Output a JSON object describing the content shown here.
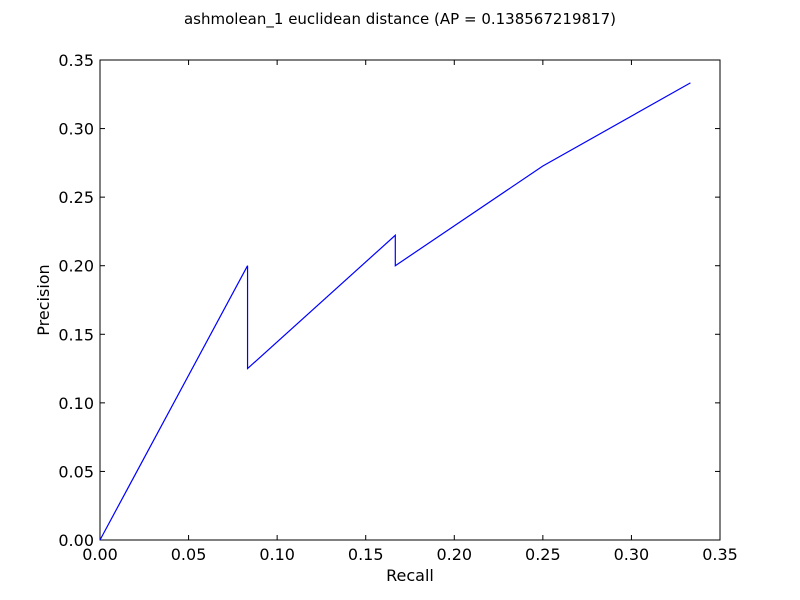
{
  "chart_data": {
    "type": "line",
    "title": "ashmolean_1 euclidean distance  (AP = 0.138567219817)",
    "xlabel": "Recall",
    "ylabel": "Precision",
    "xlim": [
      0.0,
      0.35
    ],
    "ylim": [
      0.0,
      0.35
    ],
    "x_ticks": [
      "0.00",
      "0.05",
      "0.10",
      "0.15",
      "0.20",
      "0.25",
      "0.30",
      "0.35"
    ],
    "y_ticks": [
      "0.00",
      "0.05",
      "0.10",
      "0.15",
      "0.20",
      "0.25",
      "0.30",
      "0.35"
    ],
    "grid": false,
    "series": [
      {
        "color": "#0000ff",
        "x": [
          0.0,
          0.0833,
          0.0833,
          0.1667,
          0.1667,
          0.25,
          0.3333
        ],
        "y": [
          0.0,
          0.2,
          0.125,
          0.2222,
          0.2,
          0.2727,
          0.3333
        ]
      }
    ]
  }
}
